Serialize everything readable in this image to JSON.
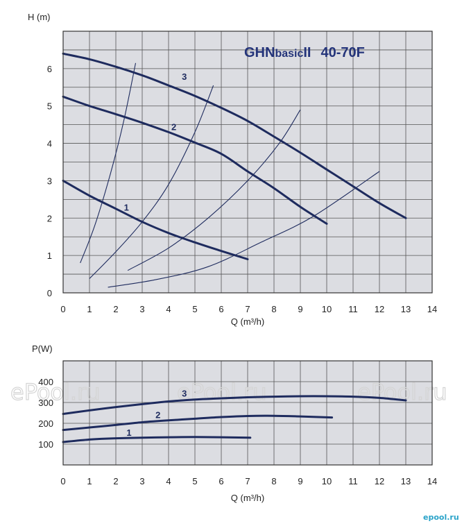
{
  "chart_data": [
    {
      "type": "line",
      "title": "GHNbasicII 40-70F",
      "title_parts": {
        "a": "GHN",
        "b": "basic",
        "c": "II",
        "d": "40-70F"
      },
      "xlabel": "Q (m³/h)",
      "ylabel": "H (m)",
      "xlim": [
        0,
        14
      ],
      "ylim": [
        0,
        7
      ],
      "grid": true,
      "xticks": [
        "0",
        "1",
        "2",
        "3",
        "4",
        "5",
        "6",
        "7",
        "8",
        "9",
        "10",
        "11",
        "12",
        "13",
        "14"
      ],
      "yticks": [
        "0",
        "1",
        "2",
        "3",
        "4",
        "5",
        "6"
      ],
      "series": [
        {
          "name": "1",
          "x": [
            0,
            1,
            2,
            3,
            4,
            5,
            6,
            7
          ],
          "y": [
            3.0,
            2.6,
            2.25,
            1.9,
            1.6,
            1.35,
            1.12,
            0.9
          ]
        },
        {
          "name": "2",
          "x": [
            0,
            1,
            2,
            3,
            4,
            5,
            6,
            7,
            8,
            9,
            10
          ],
          "y": [
            5.25,
            5.0,
            4.78,
            4.55,
            4.3,
            4.02,
            3.72,
            3.25,
            2.8,
            2.3,
            1.85
          ]
        },
        {
          "name": "3",
          "x": [
            0,
            1,
            2,
            3,
            4,
            5,
            6,
            7,
            8,
            9,
            10,
            11,
            12,
            13
          ],
          "y": [
            6.4,
            6.25,
            6.05,
            5.82,
            5.55,
            5.27,
            4.95,
            4.6,
            4.18,
            3.75,
            3.3,
            2.85,
            2.4,
            2.0
          ]
        }
      ],
      "system_curves": [
        {
          "x": [
            0.65,
            1.2,
            1.8,
            2.3,
            2.75
          ],
          "y": [
            0.8,
            1.8,
            3.2,
            4.6,
            6.15
          ]
        },
        {
          "x": [
            1.0,
            2.0,
            3.0,
            4.0,
            5.0,
            5.7
          ],
          "y": [
            0.38,
            1.1,
            1.9,
            2.9,
            4.3,
            5.55
          ]
        },
        {
          "x": [
            2.45,
            4.0,
            5.5,
            7.0,
            8.2,
            9.0
          ],
          "y": [
            0.6,
            1.2,
            2.0,
            3.0,
            4.0,
            4.9
          ]
        },
        {
          "x": [
            1.7,
            3.5,
            5.5,
            7.5,
            9.5,
            12.0
          ],
          "y": [
            0.15,
            0.35,
            0.7,
            1.35,
            2.05,
            3.25
          ]
        }
      ],
      "curve_labels": [
        {
          "text": "1",
          "x": 2.4,
          "y": 2.2
        },
        {
          "text": "2",
          "x": 4.2,
          "y": 4.35
        },
        {
          "text": "3",
          "x": 4.6,
          "y": 5.7
        }
      ]
    },
    {
      "type": "line",
      "title": "",
      "xlabel": "Q (m³/h)",
      "ylabel": "P(W)",
      "xlim": [
        0,
        14
      ],
      "ylim": [
        0,
        500
      ],
      "grid": true,
      "xticks": [
        "0",
        "1",
        "2",
        "3",
        "4",
        "5",
        "6",
        "7",
        "8",
        "9",
        "10",
        "11",
        "12",
        "13",
        "14"
      ],
      "yticks": [
        "100",
        "200",
        "300",
        "400"
      ],
      "series": [
        {
          "name": "1",
          "x": [
            0,
            1,
            2,
            3,
            4,
            5,
            6,
            7.1
          ],
          "y": [
            110,
            122,
            128,
            131,
            133,
            134,
            133,
            131
          ]
        },
        {
          "name": "2",
          "x": [
            0,
            1,
            2,
            3,
            4,
            5,
            6,
            7,
            8,
            9,
            10.2
          ],
          "y": [
            168,
            180,
            192,
            205,
            214,
            222,
            230,
            235,
            236,
            233,
            228
          ]
        },
        {
          "name": "3",
          "x": [
            0,
            1,
            2,
            3,
            4,
            5,
            6,
            7,
            8,
            9,
            10,
            11,
            12,
            13
          ],
          "y": [
            245,
            262,
            278,
            292,
            305,
            314,
            320,
            325,
            328,
            330,
            330,
            328,
            322,
            310
          ]
        }
      ],
      "curve_labels": [
        {
          "text": "1",
          "x": 2.5,
          "y": 140
        },
        {
          "text": "2",
          "x": 3.6,
          "y": 225
        },
        {
          "text": "3",
          "x": 4.6,
          "y": 328
        }
      ]
    }
  ],
  "watermarks": [
    "ePool.ru",
    "ePool.ru",
    "ePool.ru"
  ],
  "logo": "epool.ru",
  "colors": {
    "curve": "#1e2b5e",
    "grid": "#555555",
    "title": "#24347a",
    "background": "#dcdde2"
  }
}
